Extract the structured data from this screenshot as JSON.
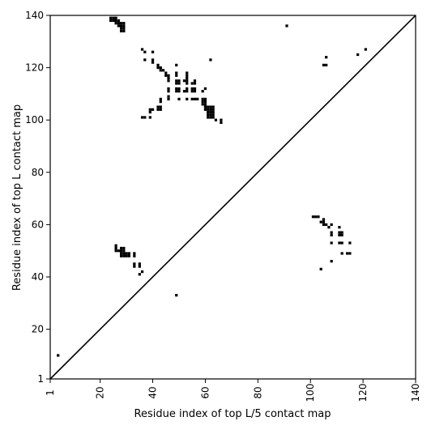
{
  "chart_data": {
    "type": "scatter",
    "title": "",
    "xlabel": "Residue index of top L/5 contact map",
    "ylabel": "Residue index of top L contact map",
    "xlim": [
      1,
      140
    ],
    "ylim": [
      1,
      140
    ],
    "x_ticks": [
      "1",
      "20",
      "40",
      "60",
      "80",
      "100",
      "120",
      "140"
    ],
    "x_tick_values": [
      1,
      20,
      40,
      60,
      80,
      100,
      120,
      140
    ],
    "y_ticks": [
      "1",
      "20",
      "40",
      "60",
      "80",
      "100",
      "120",
      "140"
    ],
    "y_tick_values": [
      1,
      20,
      40,
      60,
      80,
      100,
      120,
      140
    ],
    "diagonal": true,
    "grid": false,
    "marker_color": "#000000",
    "series": [
      {
        "points": [
          [
            24,
            139
          ],
          [
            25,
            139
          ],
          [
            26,
            139
          ],
          [
            24,
            138
          ],
          [
            25,
            138
          ],
          [
            26,
            138
          ],
          [
            27,
            138
          ],
          [
            26,
            137
          ],
          [
            27,
            137
          ],
          [
            28,
            137
          ],
          [
            29,
            137
          ],
          [
            27,
            136
          ],
          [
            28,
            136
          ],
          [
            29,
            136
          ],
          [
            28,
            135
          ],
          [
            29,
            135
          ],
          [
            28,
            134
          ],
          [
            29,
            134
          ],
          [
            91,
            136
          ],
          [
            62,
            123
          ],
          [
            36,
            127
          ],
          [
            37,
            126
          ],
          [
            37,
            123
          ],
          [
            40,
            126
          ],
          [
            40,
            123
          ],
          [
            40,
            122
          ],
          [
            42,
            121
          ],
          [
            42,
            120
          ],
          [
            43,
            120
          ],
          [
            43,
            119
          ],
          [
            44,
            119
          ],
          [
            45,
            118
          ],
          [
            45,
            117
          ],
          [
            46,
            117
          ],
          [
            46,
            116
          ],
          [
            46,
            115
          ],
          [
            49,
            121
          ],
          [
            49,
            118
          ],
          [
            49,
            117
          ],
          [
            49,
            115
          ],
          [
            50,
            115
          ],
          [
            49,
            114
          ],
          [
            50,
            114
          ],
          [
            52,
            115
          ],
          [
            53,
            118
          ],
          [
            53,
            117
          ],
          [
            53,
            116
          ],
          [
            53,
            115
          ],
          [
            53,
            114
          ],
          [
            55,
            114
          ],
          [
            56,
            115
          ],
          [
            56,
            114
          ],
          [
            46,
            112
          ],
          [
            46,
            111
          ],
          [
            49,
            112
          ],
          [
            49,
            111
          ],
          [
            50,
            111
          ],
          [
            50,
            112
          ],
          [
            52,
            111
          ],
          [
            53,
            112
          ],
          [
            53,
            111
          ],
          [
            55,
            112
          ],
          [
            55,
            111
          ],
          [
            56,
            112
          ],
          [
            56,
            111
          ],
          [
            59,
            111
          ],
          [
            60,
            112
          ],
          [
            43,
            108
          ],
          [
            43,
            107
          ],
          [
            46,
            109
          ],
          [
            46,
            108
          ],
          [
            50,
            108
          ],
          [
            53,
            108
          ],
          [
            55,
            108
          ],
          [
            56,
            108
          ],
          [
            57,
            108
          ],
          [
            59,
            108
          ],
          [
            59,
            107
          ],
          [
            60,
            108
          ],
          [
            60,
            107
          ],
          [
            59,
            106
          ],
          [
            60,
            106
          ],
          [
            60,
            105
          ],
          [
            61,
            105
          ],
          [
            62,
            105
          ],
          [
            63,
            105
          ],
          [
            60,
            104
          ],
          [
            61,
            104
          ],
          [
            62,
            104
          ],
          [
            63,
            104
          ],
          [
            61,
            103
          ],
          [
            62,
            103
          ],
          [
            63,
            103
          ],
          [
            61,
            102
          ],
          [
            62,
            102
          ],
          [
            63,
            102
          ],
          [
            61,
            101
          ],
          [
            62,
            101
          ],
          [
            63,
            101
          ],
          [
            64,
            100
          ],
          [
            66,
            99
          ],
          [
            66,
            100
          ],
          [
            39,
            104
          ],
          [
            40,
            104
          ],
          [
            39,
            103
          ],
          [
            42,
            105
          ],
          [
            43,
            105
          ],
          [
            42,
            104
          ],
          [
            43,
            104
          ],
          [
            36,
            101
          ],
          [
            37,
            101
          ],
          [
            39,
            101
          ],
          [
            106,
            124
          ],
          [
            105,
            121
          ],
          [
            106,
            121
          ],
          [
            118,
            125
          ],
          [
            121,
            127
          ],
          [
            101,
            63
          ],
          [
            102,
            63
          ],
          [
            103,
            63
          ],
          [
            104,
            61
          ],
          [
            105,
            61
          ],
          [
            105,
            62
          ],
          [
            106,
            60
          ],
          [
            107,
            59
          ],
          [
            105,
            60
          ],
          [
            108,
            60
          ],
          [
            108,
            57
          ],
          [
            108,
            56
          ],
          [
            108,
            53
          ],
          [
            111,
            59
          ],
          [
            111,
            57
          ],
          [
            112,
            57
          ],
          [
            111,
            56
          ],
          [
            112,
            56
          ],
          [
            111,
            53
          ],
          [
            112,
            53
          ],
          [
            115,
            53
          ],
          [
            112,
            49
          ],
          [
            114,
            49
          ],
          [
            115,
            49
          ],
          [
            108,
            46
          ],
          [
            104,
            43
          ],
          [
            26,
            52
          ],
          [
            26,
            51
          ],
          [
            26,
            50
          ],
          [
            27,
            50
          ],
          [
            28,
            51
          ],
          [
            29,
            51
          ],
          [
            28,
            50
          ],
          [
            29,
            50
          ],
          [
            28,
            49
          ],
          [
            29,
            49
          ],
          [
            30,
            49
          ],
          [
            31,
            49
          ],
          [
            28,
            48
          ],
          [
            29,
            48
          ],
          [
            30,
            48
          ],
          [
            31,
            48
          ],
          [
            33,
            49
          ],
          [
            33,
            48
          ],
          [
            33,
            45
          ],
          [
            33,
            44
          ],
          [
            35,
            45
          ],
          [
            35,
            44
          ],
          [
            35,
            41
          ],
          [
            36,
            42
          ],
          [
            49,
            33
          ],
          [
            4,
            10
          ]
        ]
      }
    ]
  }
}
